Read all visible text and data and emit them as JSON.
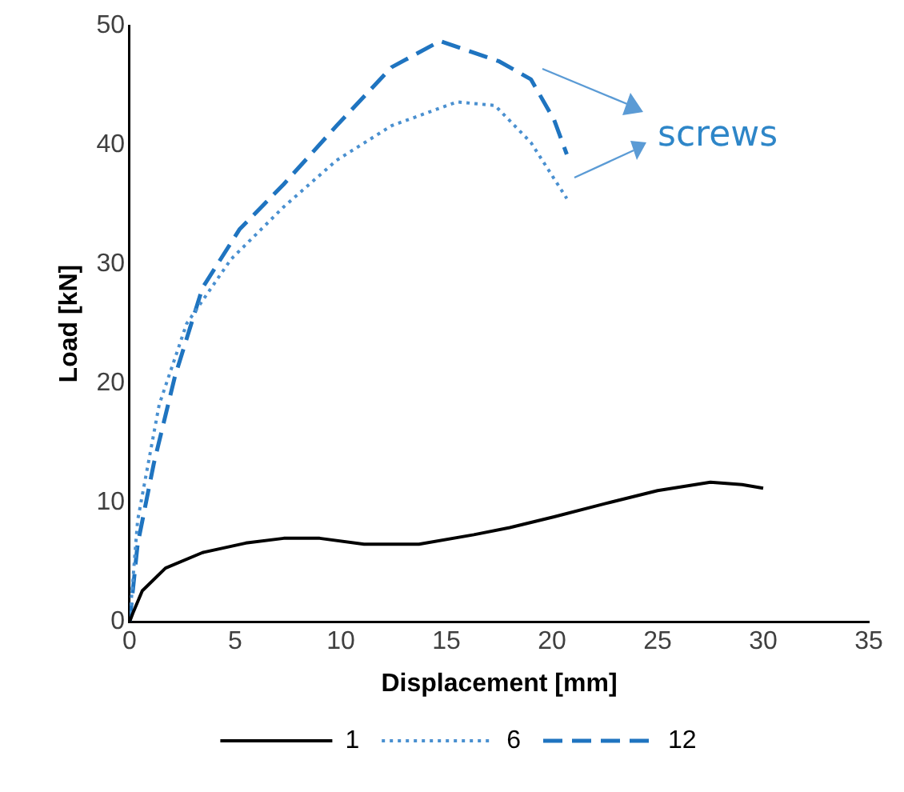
{
  "chart_data": {
    "type": "line",
    "xlabel": "Displacement [mm]",
    "ylabel": "Load [kN]",
    "xlim": [
      0,
      35
    ],
    "xticks": [
      0,
      5,
      10,
      15,
      20,
      25,
      30,
      35
    ],
    "ylim": [
      0,
      50
    ],
    "yticks": [
      0,
      10,
      20,
      30,
      40,
      50
    ],
    "grid": false,
    "legend": "bottom",
    "marker": "none",
    "annotations": [
      "screws"
    ],
    "series": [
      {
        "name": "1",
        "color": "#000000",
        "line_style": "solid",
        "x": [
          0,
          0.15,
          0.6,
          1.7,
          3.45,
          5.5,
          7.3,
          9,
          11.1,
          13.7,
          16.3,
          18,
          20.1,
          22.5,
          25,
          27.5,
          29,
          30
        ],
        "values": [
          0,
          0.7,
          2.6,
          4.5,
          5.8,
          6.6,
          7.0,
          7.0,
          6.5,
          6.5,
          7.3,
          7.9,
          8.8,
          9.9,
          11,
          11.7,
          11.5,
          11.2
        ]
      },
      {
        "name": "6",
        "color": "#4a90d0",
        "line_style": "dotted",
        "x": [
          0,
          0.38,
          1.4,
          2.7,
          4.8,
          7.3,
          9.8,
          12.4,
          15.5,
          17.3,
          19,
          20.7
        ],
        "values": [
          0,
          8.5,
          18.2,
          25,
          30.4,
          34.8,
          38.7,
          41.6,
          43.6,
          43.3,
          40.2,
          35.5
        ]
      },
      {
        "name": "12",
        "color": "#1f74c0",
        "line_style": "dashed",
        "x": [
          0,
          0.38,
          1.15,
          2.15,
          3.45,
          5.2,
          7.3,
          9.8,
          12.4,
          14.7,
          17.5,
          19,
          20.1,
          20.7
        ],
        "values": [
          0,
          6.5,
          13.3,
          20.6,
          28,
          32.9,
          36.7,
          41.6,
          46.5,
          48.7,
          47,
          45.5,
          42.1,
          39.2
        ]
      }
    ]
  }
}
